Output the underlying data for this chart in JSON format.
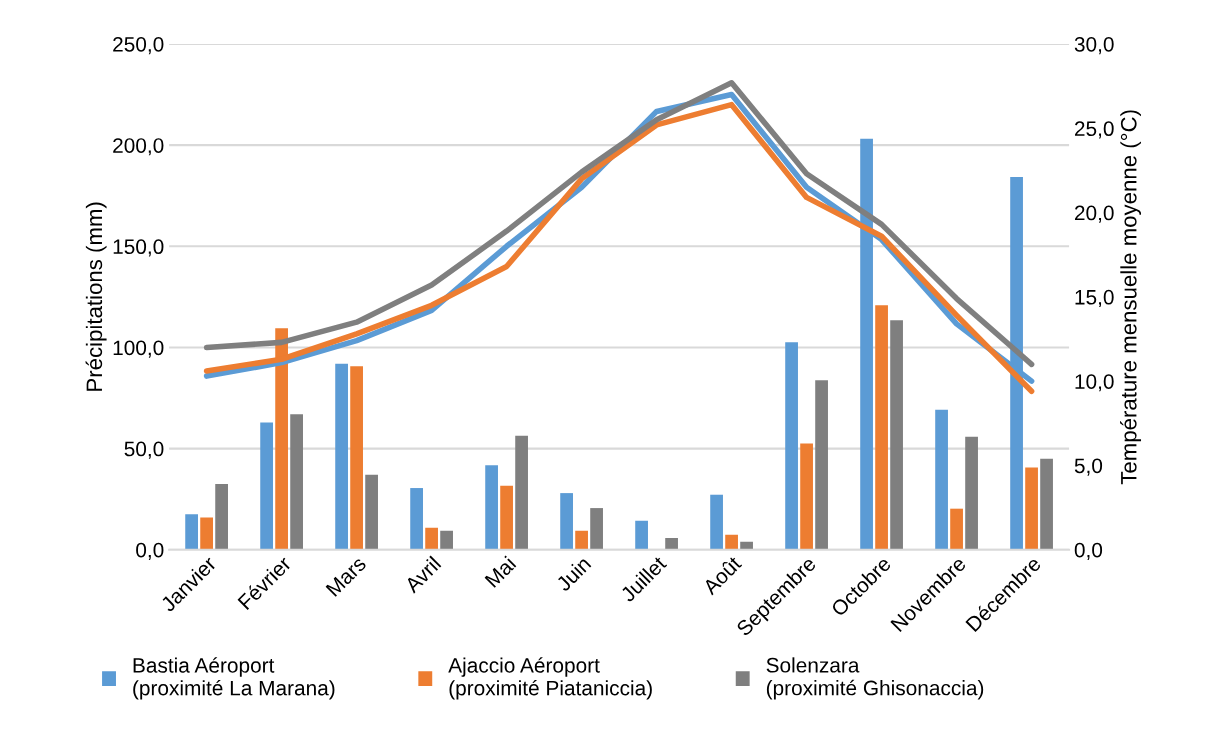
{
  "chart_data": {
    "type": "bar",
    "categories": [
      "Janvier",
      "Février",
      "Mars",
      "Avril",
      "Mai",
      "Juin",
      "Juillet",
      "Août",
      "Septembre",
      "Octobre",
      "Novembre",
      "Décembre"
    ],
    "ylabel": "Précipitations (mm)",
    "y2label": "Température mensuelle moyenne (°C)",
    "ylim": [
      0,
      250
    ],
    "yticks": [
      {
        "value": 0,
        "label": "0,0"
      },
      {
        "value": 50,
        "label": "50,0"
      },
      {
        "value": 100,
        "label": "100,0"
      },
      {
        "value": 150,
        "label": "150,0"
      },
      {
        "value": 200,
        "label": "200,0"
      },
      {
        "value": 250,
        "label": "250,0"
      }
    ],
    "y2lim": [
      0,
      30
    ],
    "y2ticks": [
      {
        "value": 0,
        "label": "0,0"
      },
      {
        "value": 5,
        "label": "5,0"
      },
      {
        "value": 10,
        "label": "10,0"
      },
      {
        "value": 15,
        "label": "15,0"
      },
      {
        "value": 20,
        "label": "20,0"
      },
      {
        "value": 25,
        "label": "25,0"
      },
      {
        "value": 30,
        "label": "30,0"
      }
    ],
    "grid": "y",
    "legend": "bottom",
    "series": [
      {
        "name": "Bastia Aéroport\n(proximité La Marana)",
        "color": "#5b9bd5",
        "values": [
          17.6,
          62.9,
          92.0,
          30.5,
          41.8,
          28.0,
          14.3,
          27.2,
          102.6,
          203.1,
          69.2,
          184.3
        ]
      },
      {
        "name": "Ajaccio Aéroport\n(proximité Piataniccia)",
        "color": "#ed7d31",
        "values": [
          16.0,
          109.5,
          90.7,
          10.9,
          31.6,
          9.4,
          null,
          7.4,
          52.5,
          120.9,
          20.3,
          40.7
        ]
      },
      {
        "name": "Solenzara\n(proximité Ghisonaccia)",
        "color": "#7f7f7f",
        "values": [
          32.5,
          67.0,
          37.1,
          9.4,
          56.3,
          20.6,
          5.8,
          4.0,
          83.8,
          113.5,
          55.8,
          45.0
        ]
      },
      {
        "type": "line",
        "axis": "y2",
        "color": "#5b9bd5",
        "values": [
          10.3,
          11.1,
          12.4,
          14.2,
          18.0,
          21.5,
          26.0,
          27.0,
          21.5,
          18.4,
          13.4,
          10.0
        ]
      },
      {
        "type": "line",
        "axis": "y2",
        "color": "#ed7d31",
        "values": [
          10.6,
          11.3,
          12.8,
          14.5,
          16.8,
          22.0,
          25.2,
          26.4,
          20.9,
          18.6,
          13.9,
          9.4
        ]
      },
      {
        "type": "line",
        "axis": "y2",
        "color": "#7f7f7f",
        "values": [
          12.0,
          12.3,
          13.5,
          15.7,
          18.9,
          22.4,
          25.5,
          27.7,
          22.3,
          19.3,
          14.9,
          11.0
        ]
      }
    ]
  }
}
